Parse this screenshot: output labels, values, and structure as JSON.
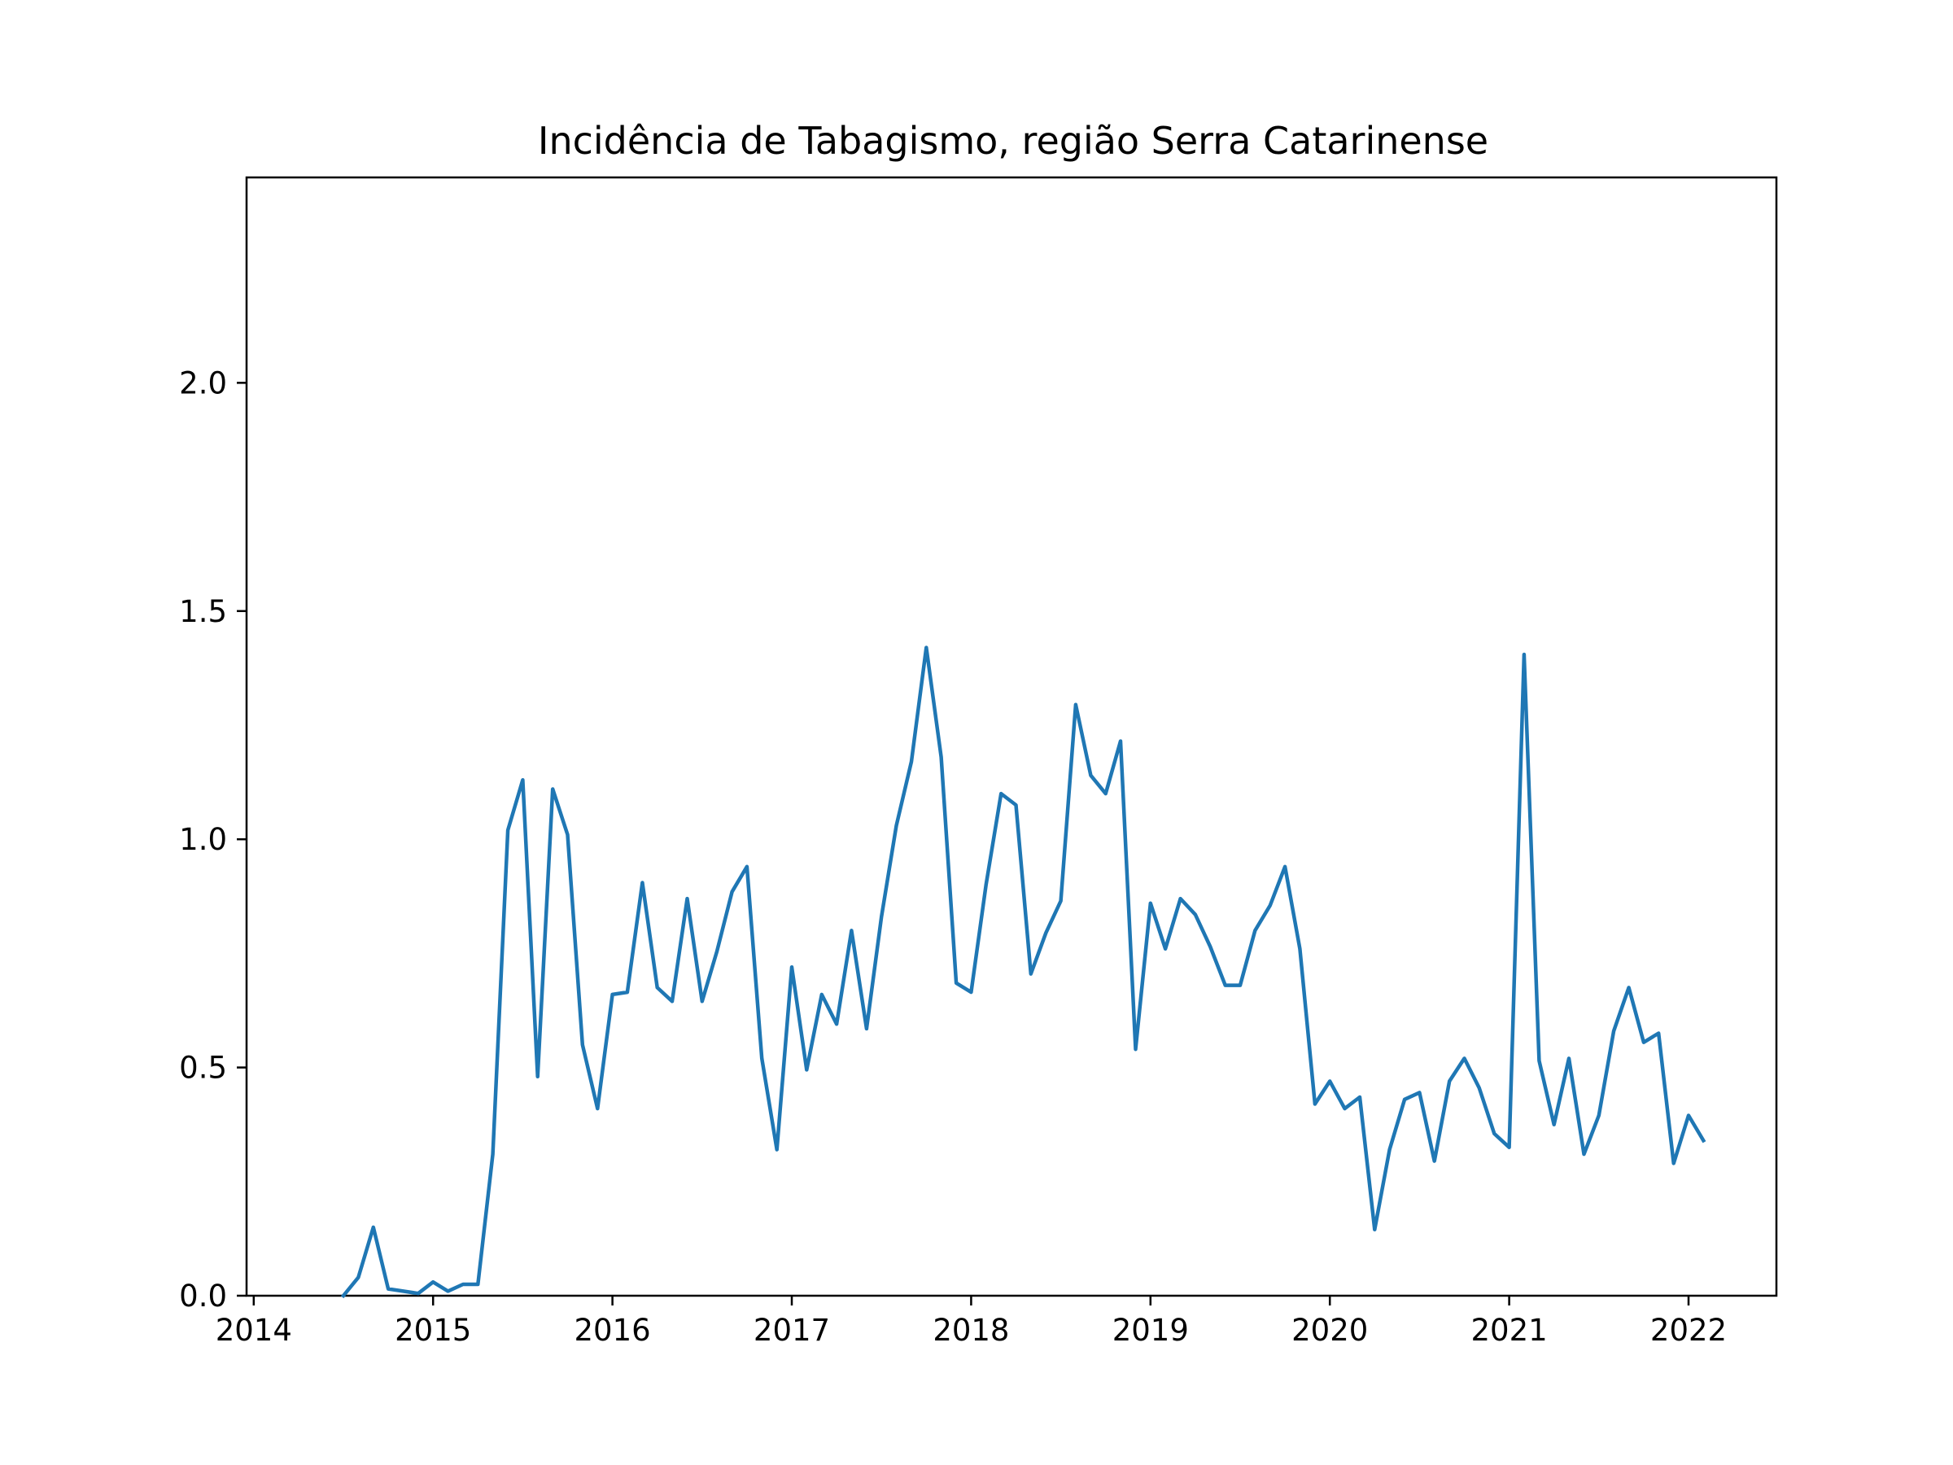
{
  "chart_data": {
    "type": "line",
    "title": "Incidência de Tabagismo, região Serra Catarinense",
    "xlabel": "",
    "ylabel": "",
    "xlim": [
      2013.96,
      2022.49
    ],
    "ylim": [
      0,
      2.45
    ],
    "grid": false,
    "x_ticks": [
      2014,
      2015,
      2016,
      2017,
      2018,
      2019,
      2020,
      2021,
      2022
    ],
    "x_tick_labels": [
      "2014",
      "2015",
      "2016",
      "2017",
      "2018",
      "2019",
      "2020",
      "2021",
      "2022"
    ],
    "y_ticks": [
      0.0,
      0.5,
      1.0,
      1.5,
      2.0
    ],
    "y_tick_labels": [
      "0.0",
      "0.5",
      "1.0",
      "1.5",
      "2.0"
    ],
    "color": "#1f77b4",
    "series": [
      {
        "x": [
          2014.5,
          2014.583,
          2014.667,
          2014.75,
          2014.833,
          2014.917,
          2015.0,
          2015.083,
          2015.167,
          2015.25,
          2015.333,
          2015.417,
          2015.5,
          2015.583,
          2015.667,
          2015.75,
          2015.833,
          2015.917,
          2016.0,
          2016.083,
          2016.167,
          2016.25,
          2016.333,
          2016.417,
          2016.5,
          2016.583,
          2016.667,
          2016.75,
          2016.833,
          2016.917,
          2017.0,
          2017.083,
          2017.167,
          2017.25,
          2017.333,
          2017.417,
          2017.5,
          2017.583,
          2017.667,
          2017.75,
          2017.833,
          2017.917,
          2018.0,
          2018.083,
          2018.167,
          2018.25,
          2018.333,
          2018.417,
          2018.5,
          2018.583,
          2018.667,
          2018.75,
          2018.833,
          2018.917,
          2019.0,
          2019.083,
          2019.167,
          2019.25,
          2019.333,
          2019.417,
          2019.5,
          2019.583,
          2019.667,
          2019.75,
          2019.833,
          2019.917,
          2020.0,
          2020.083,
          2020.167,
          2020.25,
          2020.333,
          2020.417,
          2020.5,
          2020.583,
          2020.667,
          2020.75,
          2020.833,
          2020.917,
          2021.0,
          2021.083,
          2021.167,
          2021.25,
          2021.333,
          2021.417,
          2021.5,
          2021.583,
          2021.667,
          2021.75,
          2021.833,
          2021.917,
          2022.0,
          2022.083
        ],
        "y": [
          0.0,
          0.04,
          0.15,
          0.015,
          0.01,
          0.005,
          0.03,
          0.01,
          0.025,
          0.025,
          0.31,
          1.02,
          1.13,
          0.48,
          1.11,
          1.01,
          0.55,
          0.41,
          0.66,
          0.665,
          0.905,
          0.675,
          0.645,
          0.87,
          0.645,
          0.755,
          0.885,
          0.94,
          0.52,
          0.32,
          0.72,
          0.495,
          0.66,
          0.595,
          0.8,
          0.585,
          0.83,
          1.03,
          1.17,
          1.42,
          1.18,
          0.685,
          0.665,
          0.9,
          1.1,
          1.075,
          0.705,
          0.795,
          0.865,
          1.295,
          1.14,
          1.1,
          1.215,
          0.54,
          0.86,
          0.76,
          0.87,
          0.835,
          0.765,
          0.68,
          0.68,
          0.8,
          0.855,
          0.94,
          0.76,
          0.42,
          0.47,
          0.41,
          0.435,
          0.145,
          0.32,
          0.43,
          0.445,
          0.295,
          0.47,
          0.52,
          0.455,
          0.355,
          0.325,
          1.405,
          0.515,
          0.375,
          0.52,
          0.31,
          0.395,
          0.58,
          0.675,
          0.555,
          0.575,
          0.29,
          0.395,
          0.34
        ]
      }
    ]
  }
}
